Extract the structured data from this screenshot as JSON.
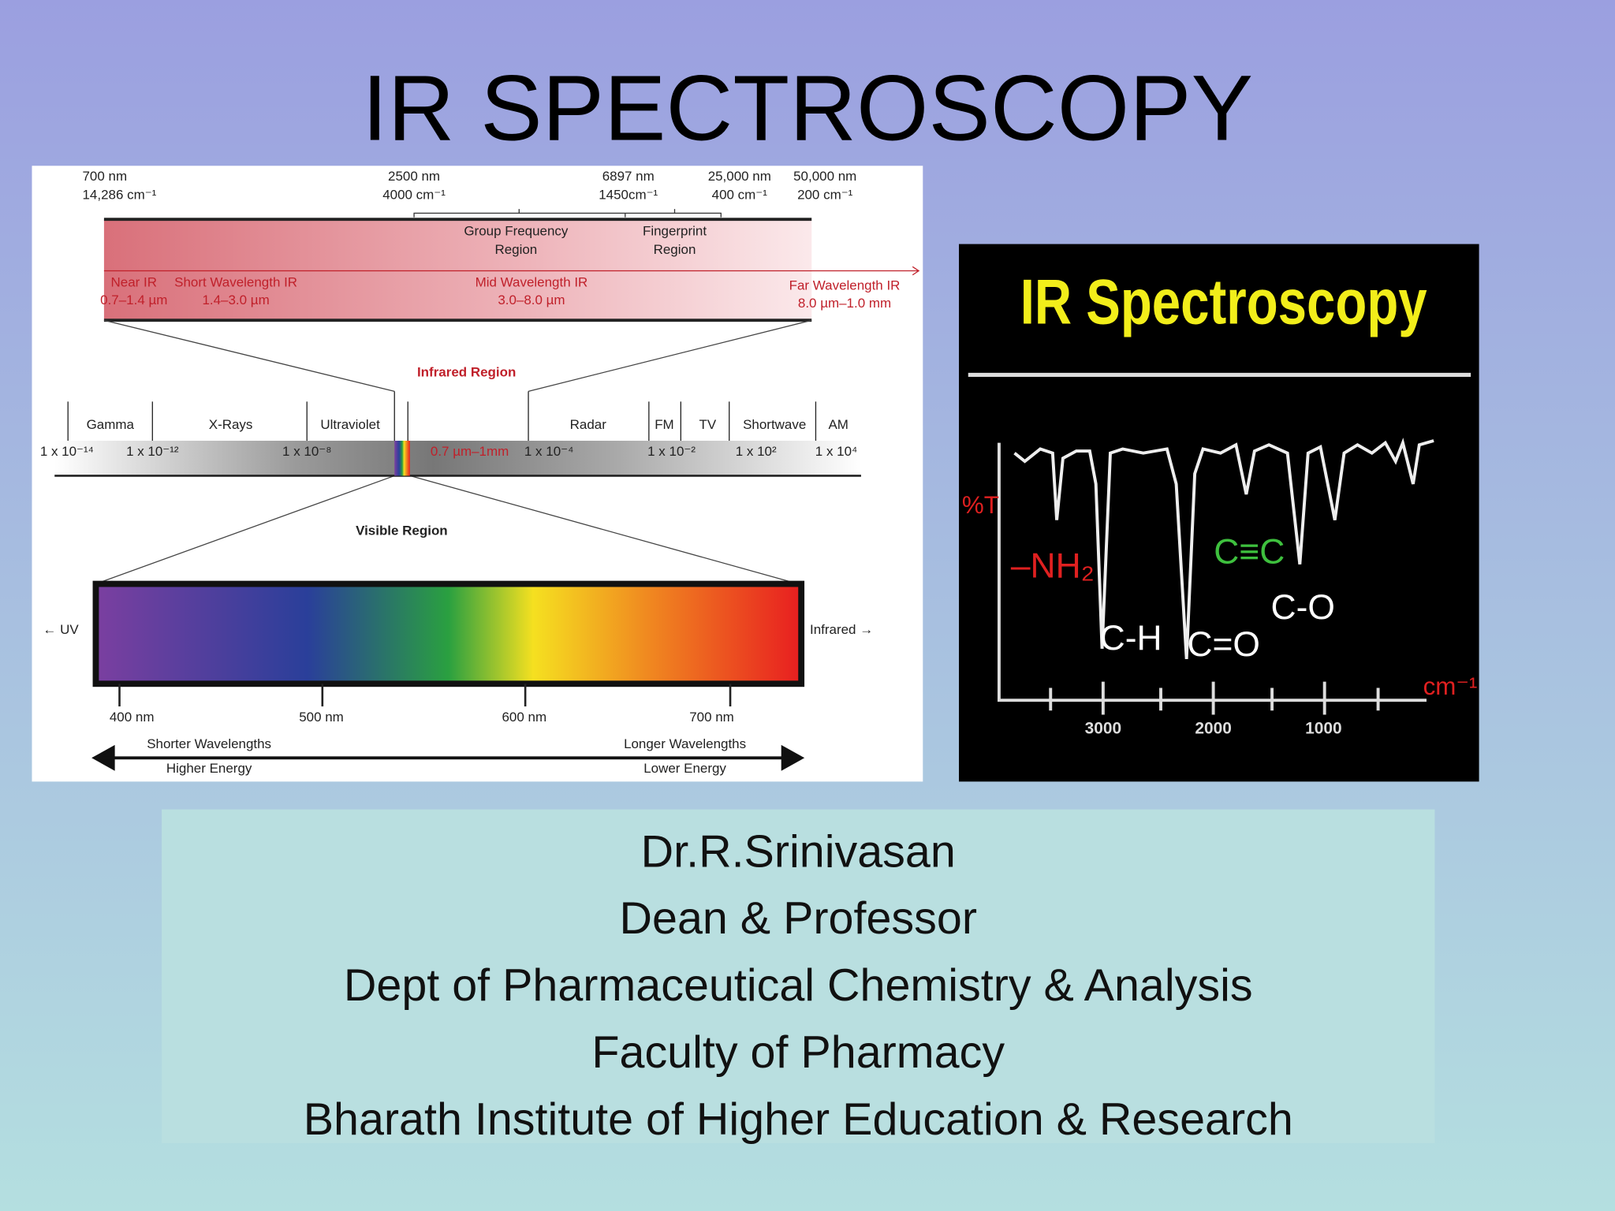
{
  "title": "IR SPECTROSCOPY",
  "em_diagram": {
    "top_scale": [
      {
        "nm": "700 nm",
        "wavenumber": "14,286 cm⁻¹"
      },
      {
        "nm": "2500 nm",
        "wavenumber": "4000 cm⁻¹"
      },
      {
        "nm": "6897 nm",
        "wavenumber": "1450cm⁻¹"
      },
      {
        "nm": "25,000 nm",
        "wavenumber": "400 cm⁻¹"
      },
      {
        "nm": "50,000 nm",
        "wavenumber": "200 cm⁻¹"
      }
    ],
    "ir_regions": [
      [
        "Group Frequency",
        "Region"
      ],
      [
        "Fingerprint",
        "Region"
      ]
    ],
    "ir_bands": [
      {
        "name": "Near IR",
        "range": "0.7–1.4 µm"
      },
      {
        "name": "Short Wavelength IR",
        "range": "1.4–3.0 µm"
      },
      {
        "name": "Mid Wavelength IR",
        "range": "3.0–8.0 µm"
      },
      {
        "name": "Far Wavelength IR",
        "range": "8.0 µm–1.0 mm"
      }
    ],
    "infrared_label": "Infrared Region",
    "em_bands": [
      "Gamma",
      "X-Rays",
      "Ultraviolet",
      "Radar",
      "FM",
      "TV",
      "Shortwave",
      "AM"
    ],
    "em_scale": [
      "1 x 10⁻¹⁴",
      "1 x 10⁻¹²",
      "1 x 10⁻⁸",
      "1 x 10⁻⁴",
      "1 x 10⁻²",
      "1 x 10²",
      "1 x 10⁴"
    ],
    "ir_range": "0.7 µm–1mm",
    "visible_label": "Visible Region",
    "uv_label": "← UV",
    "infrared_arrow": "Infrared →",
    "visible_ticks": [
      "400 nm",
      "500 nm",
      "600 nm",
      "700 nm"
    ],
    "shorter": [
      "Shorter Wavelengths",
      "Higher Energy"
    ],
    "longer": [
      "Longer Wavelengths",
      "Lower Energy"
    ]
  },
  "spectrum_image": {
    "title": "IR Spectroscopy",
    "y_label": "%T",
    "x_unit": "cm⁻¹",
    "x_ticks": [
      "3000",
      "2000",
      "1000"
    ],
    "peaks": [
      "–NH₂",
      "C-H",
      "C=O",
      "C≡C",
      "C-O"
    ]
  },
  "author": {
    "lines": [
      "Dr.R.Srinivasan",
      "Dean & Professor",
      "Dept of Pharmaceutical Chemistry & Analysis",
      "Faculty of Pharmacy",
      "Bharath Institute of Higher Education & Research"
    ]
  }
}
